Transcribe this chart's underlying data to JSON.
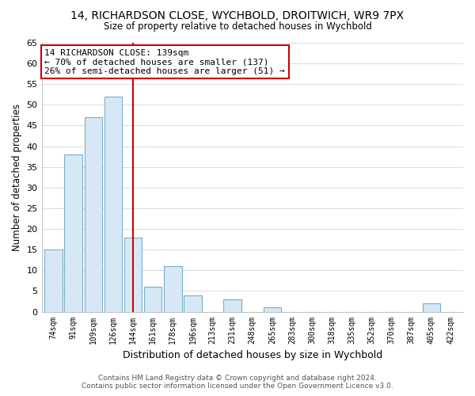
{
  "title": "14, RICHARDSON CLOSE, WYCHBOLD, DROITWICH, WR9 7PX",
  "subtitle": "Size of property relative to detached houses in Wychbold",
  "xlabel": "Distribution of detached houses by size in Wychbold",
  "ylabel": "Number of detached properties",
  "bar_labels": [
    "74sqm",
    "91sqm",
    "109sqm",
    "126sqm",
    "144sqm",
    "161sqm",
    "178sqm",
    "196sqm",
    "213sqm",
    "231sqm",
    "248sqm",
    "265sqm",
    "283sqm",
    "300sqm",
    "318sqm",
    "335sqm",
    "352sqm",
    "370sqm",
    "387sqm",
    "405sqm",
    "422sqm"
  ],
  "bar_values": [
    15,
    38,
    47,
    52,
    18,
    6,
    11,
    4,
    0,
    3,
    0,
    1,
    0,
    0,
    0,
    0,
    0,
    0,
    0,
    2,
    0
  ],
  "bar_color_fill": "#d6e8f5",
  "bar_color_edge": "#7aaec8",
  "highlight_index": 4,
  "highlight_color": "#cc0000",
  "annotation_title": "14 RICHARDSON CLOSE: 139sqm",
  "annotation_line1": "← 70% of detached houses are smaller (137)",
  "annotation_line2": "26% of semi-detached houses are larger (51) →",
  "annotation_box_color": "#ffffff",
  "annotation_box_edge": "#cc0000",
  "ylim": [
    0,
    65
  ],
  "yticks": [
    0,
    5,
    10,
    15,
    20,
    25,
    30,
    35,
    40,
    45,
    50,
    55,
    60,
    65
  ],
  "footer_line1": "Contains HM Land Registry data © Crown copyright and database right 2024.",
  "footer_line2": "Contains public sector information licensed under the Open Government Licence v3.0.",
  "bg_color": "#ffffff",
  "grid_color": "#d0dde8"
}
